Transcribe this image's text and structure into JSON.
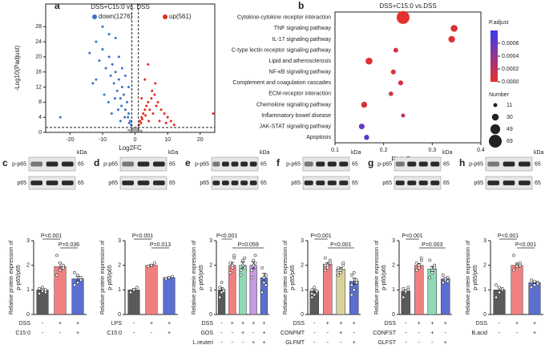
{
  "chart_data": [
    {
      "type": "scatter",
      "panel": "a",
      "title": "DSS+C15:0 vs. DSS",
      "xlabel": "Log2FC",
      "ylabel": "-Log10(Padjust)",
      "xlim": [
        -27.5,
        24.5
      ],
      "ylim": [
        0,
        34
      ],
      "xticks": [
        -20,
        -10,
        0,
        10,
        20
      ],
      "yticks": [
        0,
        4,
        8,
        12,
        16,
        20,
        24,
        28
      ],
      "thresholds": {
        "x": [
          -1,
          1
        ],
        "y": 1.3
      },
      "series": [
        {
          "name": "down(1276)",
          "color": "#3b6fc9",
          "x": [
            -1.5,
            -2,
            -2.5,
            -3,
            -3.5,
            -4,
            -4.5,
            -5,
            -5.5,
            -6,
            -6.5,
            -7,
            -7.5,
            -8,
            -9,
            -10,
            -11,
            -12,
            -13,
            -14,
            -1.2,
            -1.8,
            -2.2,
            -3.2,
            -4.2,
            -5.2,
            -6.2,
            -7.2,
            -8.2,
            -9.5,
            -3,
            -4,
            -5,
            -2,
            -6,
            -8,
            -10,
            -12,
            -23,
            -4.5
          ],
          "values": [
            3,
            5,
            8,
            6,
            10,
            12,
            9,
            14,
            11,
            16,
            13,
            18,
            15,
            20,
            17,
            22,
            19,
            24,
            13,
            21,
            2,
            2.5,
            4,
            4,
            7,
            6,
            9,
            5,
            8,
            10,
            15,
            17,
            20,
            12,
            25,
            26,
            28,
            14,
            4,
            3
          ]
        },
        {
          "name": "up(561)",
          "color": "#e32a22",
          "x": [
            1.2,
            1.5,
            2,
            2.5,
            3,
            3.5,
            4,
            4.5,
            5,
            5.5,
            6,
            6.5,
            7,
            8,
            9,
            10,
            11,
            12,
            1.8,
            2.2,
            3.2,
            4.2,
            5.2,
            6.2,
            3,
            4,
            2,
            24,
            7.5,
            9.5
          ],
          "values": [
            2,
            3,
            4,
            5,
            6,
            7,
            8,
            6,
            9,
            5,
            10,
            7,
            8,
            6,
            5,
            4,
            3,
            2,
            2.5,
            3.5,
            4.5,
            3,
            11,
            13,
            14,
            18,
            9,
            5,
            3,
            2.5
          ]
        },
        {
          "color": "#a8a8a8",
          "x": [
            -1.5,
            -1,
            -0.5,
            0,
            0.5,
            1,
            1.5,
            -0.8,
            0.3,
            0.8,
            -0.3,
            -1.2,
            1.2,
            -2,
            2,
            -0.6,
            0.6,
            0.1
          ],
          "values": [
            0.5,
            1,
            0.3,
            0.8,
            0.6,
            1.1,
            0.4,
            0.2,
            1.2,
            0.9,
            0.7,
            0.1,
            0.3,
            0.6,
            0.4,
            1.0,
            0.2,
            0.5
          ]
        }
      ]
    },
    {
      "type": "dot",
      "panel": "b",
      "title": "DSS+C15:0 vs.DSS",
      "xlabel": "Rich Factor",
      "categories": [
        "Cytokine-cytokine receptor interaction",
        "TNF signaling pathway",
        "IL-17 signaling pathway",
        "C-type lectin receptor signaling pathway",
        "Lipid and atherosclerosis",
        "NF-κB signaling pathway",
        "Complement and coagulation cascades",
        "ECM-receptor interaction",
        "Chemokine signaling pathway",
        "Inflammatory bowel disease",
        "JAK-STAT signaling pathway",
        "Apoptosis"
      ],
      "values": [
        0.24,
        0.345,
        0.34,
        0.225,
        0.17,
        0.22,
        0.235,
        0.215,
        0.16,
        0.24,
        0.155,
        0.165
      ],
      "sizes": [
        69,
        30,
        28,
        16,
        30,
        17,
        17,
        14,
        24,
        11,
        22,
        18
      ],
      "padjust": [
        2e-05,
        5e-05,
        4e-05,
        0.0001,
        3e-05,
        6e-05,
        0.0001,
        0.0001,
        8e-05,
        0.0002,
        0.0006,
        0.0007
      ],
      "xlim": [
        0.1,
        0.4
      ],
      "xticks": [
        0.1,
        0.2,
        0.3,
        0.4
      ],
      "color_title": "P.adjust",
      "clim": [
        0,
        0.0008
      ],
      "colors": [
        "#e8302a",
        "#3a3af0"
      ],
      "cticks": [
        {
          "value": 0,
          "label": "0.0000"
        },
        {
          "value": 0.0002,
          "label": "0.0002"
        },
        {
          "value": 0.0004,
          "label": "0.0004"
        },
        {
          "value": 0.0006,
          "label": "0.0006"
        }
      ],
      "size_title": "Number",
      "size_ticks": [
        11,
        30,
        49,
        69
      ]
    },
    {
      "type": "bar",
      "panel": "c",
      "blot": {
        "rows": [
          "p-p65",
          "p65"
        ],
        "unit": "kDa",
        "sizes": [
          65,
          65
        ]
      },
      "ylabel": [
        "Relative protein expression of",
        "p-p65/p65"
      ],
      "ylim": [
        0,
        3
      ],
      "yticks": [
        0,
        1,
        2,
        3
      ],
      "values": [
        1.0,
        1.95,
        1.45
      ],
      "errors": [
        0.06,
        0.14,
        0.1
      ],
      "colors": [
        "#5a5a5a",
        "#f08080",
        "#5a6fd0"
      ],
      "points": [
        [
          0.85,
          0.95,
          1.0,
          1.05,
          1.1,
          0.9
        ],
        [
          1.6,
          1.8,
          2.0,
          2.4,
          2.1,
          1.9
        ],
        [
          1.2,
          1.3,
          1.5,
          1.7,
          1.6,
          1.4
        ]
      ],
      "conditions": [
        {
          "name": "DSS",
          "marks": [
            "-",
            "+",
            "+"
          ]
        },
        {
          "name": "C15:0",
          "marks": [
            "-",
            "-",
            "+"
          ]
        }
      ],
      "comparisons": [
        {
          "pair": [
            0,
            1
          ],
          "label": "P<0.001"
        },
        {
          "pair": [
            1,
            2
          ],
          "label": "P=0.036"
        }
      ]
    },
    {
      "type": "bar",
      "panel": "d",
      "blot": {
        "rows": [
          "p-p65",
          "p65"
        ],
        "unit": "kDa",
        "sizes": [
          65,
          65
        ]
      },
      "ylabel": [
        "Relative protein expression of",
        "p-p65/p65"
      ],
      "ylim": [
        0,
        3
      ],
      "yticks": [
        0,
        1,
        2,
        3
      ],
      "values": [
        1.0,
        2.0,
        1.5
      ],
      "errors": [
        0.05,
        0.04,
        0.03
      ],
      "colors": [
        "#5a5a5a",
        "#f08080",
        "#5a6fd0"
      ],
      "points": [
        [
          0.9,
          1.0,
          1.1
        ],
        [
          1.95,
          2.0,
          2.1
        ],
        [
          1.45,
          1.5,
          1.55
        ]
      ],
      "conditions": [
        {
          "name": "LPS",
          "marks": [
            "-",
            "+",
            "+"
          ]
        },
        {
          "name": "C15:0",
          "marks": [
            "-",
            "-",
            "+"
          ]
        }
      ],
      "comparisons": [
        {
          "pair": [
            0,
            1
          ],
          "label": "P<0.001"
        },
        {
          "pair": [
            1,
            2
          ],
          "label": "P=0.013"
        }
      ]
    },
    {
      "type": "bar",
      "panel": "e",
      "blot": {
        "rows": [
          "p-p65",
          "p65"
        ],
        "unit": "kDa",
        "sizes": [
          65,
          65
        ]
      },
      "ylabel": [
        "Relative protein expression of",
        "p-p65/p65"
      ],
      "ylim": [
        0,
        3
      ],
      "yticks": [
        0,
        1,
        2,
        3
      ],
      "values": [
        1.0,
        2.0,
        2.0,
        2.0,
        1.5
      ],
      "errors": [
        0.1,
        0.12,
        0.13,
        0.14,
        0.17
      ],
      "colors": [
        "#5a5a5a",
        "#f08080",
        "#8fd9b6",
        "#c29be0",
        "#5a6fd0"
      ],
      "points": [
        [
          0.7,
          0.9,
          1.0,
          1.1,
          1.3,
          0.95
        ],
        [
          1.7,
          2.0,
          2.3,
          2.1,
          1.9,
          2.4
        ],
        [
          1.6,
          2.0,
          2.3,
          1.8,
          2.2,
          1.9
        ],
        [
          1.5,
          2.0,
          2.4,
          1.8,
          2.2,
          2.1
        ],
        [
          0.9,
          1.3,
          1.6,
          1.9,
          1.5,
          1.2
        ]
      ],
      "conditions": [
        {
          "name": "DSS",
          "marks": [
            "-",
            "+",
            "+",
            "+",
            "+"
          ]
        },
        {
          "name": "GOS",
          "marks": [
            "-",
            "-",
            "+",
            "-",
            "+"
          ]
        },
        {
          "name": "L.reuteri",
          "marks": [
            "-",
            "-",
            "-",
            "+",
            "+"
          ]
        }
      ],
      "comparisons": [
        {
          "pair": [
            0,
            1
          ],
          "label": "P<0.001"
        },
        {
          "pair": [
            1,
            4
          ],
          "label": "P=0.059"
        }
      ]
    },
    {
      "type": "bar",
      "panel": "f",
      "blot": {
        "rows": [
          "p-p65",
          "p65"
        ],
        "unit": "kDa",
        "sizes": [
          65,
          65
        ]
      },
      "ylabel": [
        "Relative protein expression of",
        "p-p65/p65"
      ],
      "ylim": [
        0,
        3
      ],
      "yticks": [
        0,
        1,
        2,
        3
      ],
      "values": [
        0.95,
        2.05,
        1.85,
        1.35
      ],
      "errors": [
        0.06,
        0.06,
        0.06,
        0.13
      ],
      "colors": [
        "#5a5a5a",
        "#f08080",
        "#d8d29a",
        "#5a6fd0"
      ],
      "points": [
        [
          0.7,
          0.8,
          0.9,
          1.0,
          1.1,
          0.95,
          0.85
        ],
        [
          1.8,
          2.0,
          2.2,
          2.3,
          1.9,
          2.1,
          2.0
        ],
        [
          1.6,
          1.8,
          2.0,
          1.9,
          1.7,
          2.1,
          1.8
        ],
        [
          0.8,
          1.0,
          1.3,
          1.6,
          1.7,
          1.4,
          1.2
        ]
      ],
      "conditions": [
        {
          "name": "DSS",
          "marks": [
            "-",
            "+",
            "+",
            "+"
          ]
        },
        {
          "name": "CONFMT",
          "marks": [
            "-",
            "-",
            "+",
            "-"
          ]
        },
        {
          "name": "GLFMT",
          "marks": [
            "-",
            "-",
            "-",
            "+"
          ]
        }
      ],
      "comparisons": [
        {
          "pair": [
            0,
            1
          ],
          "label": "P<0.001"
        },
        {
          "pair": [
            1,
            3
          ],
          "label": "P<0.001"
        }
      ]
    },
    {
      "type": "bar",
      "panel": "g",
      "blot": {
        "rows": [
          "p-p65",
          "p65"
        ],
        "unit": "kDa",
        "sizes": [
          65,
          65
        ]
      },
      "ylabel": [
        "Relative protein expression of",
        "p-p65/p65"
      ],
      "ylim": [
        0,
        3
      ],
      "yticks": [
        0,
        1,
        2,
        3
      ],
      "values": [
        0.95,
        2.0,
        1.85,
        1.45
      ],
      "errors": [
        0.05,
        0.07,
        0.1,
        0.05
      ],
      "colors": [
        "#5a5a5a",
        "#f08080",
        "#8fd9b6",
        "#5a6fd0"
      ],
      "points": [
        [
          0.7,
          0.9,
          1.0,
          1.05,
          0.95,
          1.1
        ],
        [
          1.8,
          2.0,
          2.2,
          2.1,
          1.9,
          2.3
        ],
        [
          1.5,
          1.7,
          2.0,
          2.2,
          1.8,
          1.9
        ],
        [
          1.3,
          1.4,
          1.5,
          1.6,
          1.45,
          1.35
        ]
      ],
      "conditions": [
        {
          "name": "DSS",
          "marks": [
            "-",
            "+",
            "+",
            "+"
          ]
        },
        {
          "name": "CONFST",
          "marks": [
            "-",
            "-",
            "+",
            "-"
          ]
        },
        {
          "name": "GLFST",
          "marks": [
            "-",
            "-",
            "-",
            "+"
          ]
        }
      ],
      "comparisons": [
        {
          "pair": [
            0,
            1
          ],
          "label": "P<0.001"
        },
        {
          "pair": [
            1,
            3
          ],
          "label": "P=0.003"
        }
      ]
    },
    {
      "type": "bar",
      "panel": "h",
      "blot": {
        "rows": [
          "p-p65",
          "p65"
        ],
        "unit": "kDa",
        "sizes": [
          65,
          65
        ]
      },
      "ylabel": [
        "Relative protein expression of",
        "p-p65/p65"
      ],
      "ylim": [
        0,
        3
      ],
      "yticks": [
        0,
        1,
        2,
        3
      ],
      "values": [
        1.0,
        2.0,
        1.3
      ],
      "errors": [
        0.08,
        0.09,
        0.05
      ],
      "colors": [
        "#5a5a5a",
        "#f08080",
        "#5a6fd0"
      ],
      "points": [
        [
          0.7,
          0.9,
          1.0,
          1.2,
          1.1,
          1.05
        ],
        [
          1.8,
          2.0,
          2.1,
          2.4,
          1.95,
          2.0
        ],
        [
          1.1,
          1.2,
          1.3,
          1.4,
          1.35,
          1.25
        ]
      ],
      "conditions": [
        {
          "name": "DSS",
          "marks": [
            "-",
            "+",
            "+"
          ]
        },
        {
          "name": "B.acid",
          "marks": [
            "-",
            "-",
            "+"
          ]
        }
      ],
      "comparisons": [
        {
          "pair": [
            0,
            1
          ],
          "label": "P<0.001"
        },
        {
          "pair": [
            1,
            2
          ],
          "label": "P<0.001"
        }
      ]
    }
  ]
}
